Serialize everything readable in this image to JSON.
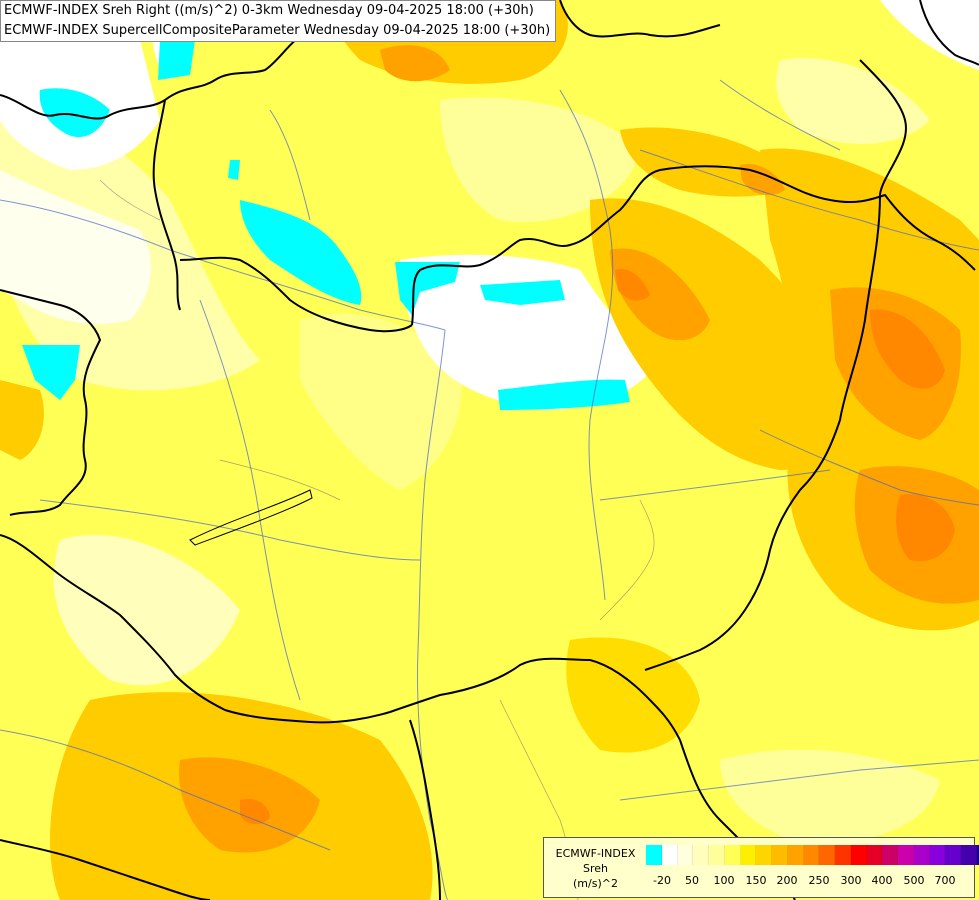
{
  "header": {
    "line1": "ECMWF-INDEX Sreh Right ((m/s)^2) 0-3km Wednesday 09-04-2025 18:00 (+30h)",
    "line2": "ECMWF-INDEX SupercellCompositeParameter Wednesday 09-04-2025 18:00 (+30h)"
  },
  "legend": {
    "title_line1": "ECMWF-INDEX",
    "title_line2": "Sreh",
    "title_line3": "(m/s)^2",
    "colors": [
      "#00ffff",
      "#ffffff",
      "#ffffdd",
      "#ffffbb",
      "#ffff99",
      "#ffff55",
      "#ffee00",
      "#ffd500",
      "#ffbb00",
      "#ffa200",
      "#ff8800",
      "#ff6600",
      "#ff3300",
      "#ff0000",
      "#e60026",
      "#cc0066",
      "#cc00aa",
      "#aa00cc",
      "#8800dd",
      "#6600cc",
      "#4400aa",
      "#1a0088"
    ],
    "ticks": [
      "-20",
      "50",
      "100",
      "150",
      "200",
      "250",
      "300",
      "400",
      "500",
      "700"
    ]
  }
}
